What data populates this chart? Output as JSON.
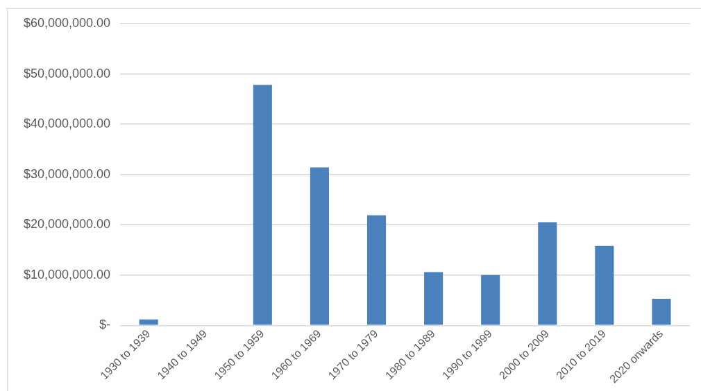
{
  "chart_data": {
    "type": "bar",
    "categories": [
      "1930 to 1939",
      "1940 to 1949",
      "1950 to 1959",
      "1960 to 1969",
      "1970 to 1979",
      "1980 to 1989",
      "1990 to 1999",
      "2000 to 2009",
      "2010 to 2019",
      "2020 onwards"
    ],
    "values": [
      1200000,
      0,
      47800000,
      31400000,
      21900000,
      10600000,
      10000000,
      20500000,
      15800000,
      5300000
    ],
    "color": "#4a81bd",
    "ylim": [
      0,
      60000000
    ],
    "yticks": [
      {
        "value": 0,
        "label": "$-"
      },
      {
        "value": 10000000,
        "label": "$10,000,000.00"
      },
      {
        "value": 20000000,
        "label": "$20,000,000.00"
      },
      {
        "value": 30000000,
        "label": "$30,000,000.00"
      },
      {
        "value": 40000000,
        "label": "$40,000,000.00"
      },
      {
        "value": 50000000,
        "label": "$50,000,000.00"
      },
      {
        "value": 60000000,
        "label": "$60,000,000.00"
      }
    ],
    "grid": "y",
    "legend": false
  }
}
